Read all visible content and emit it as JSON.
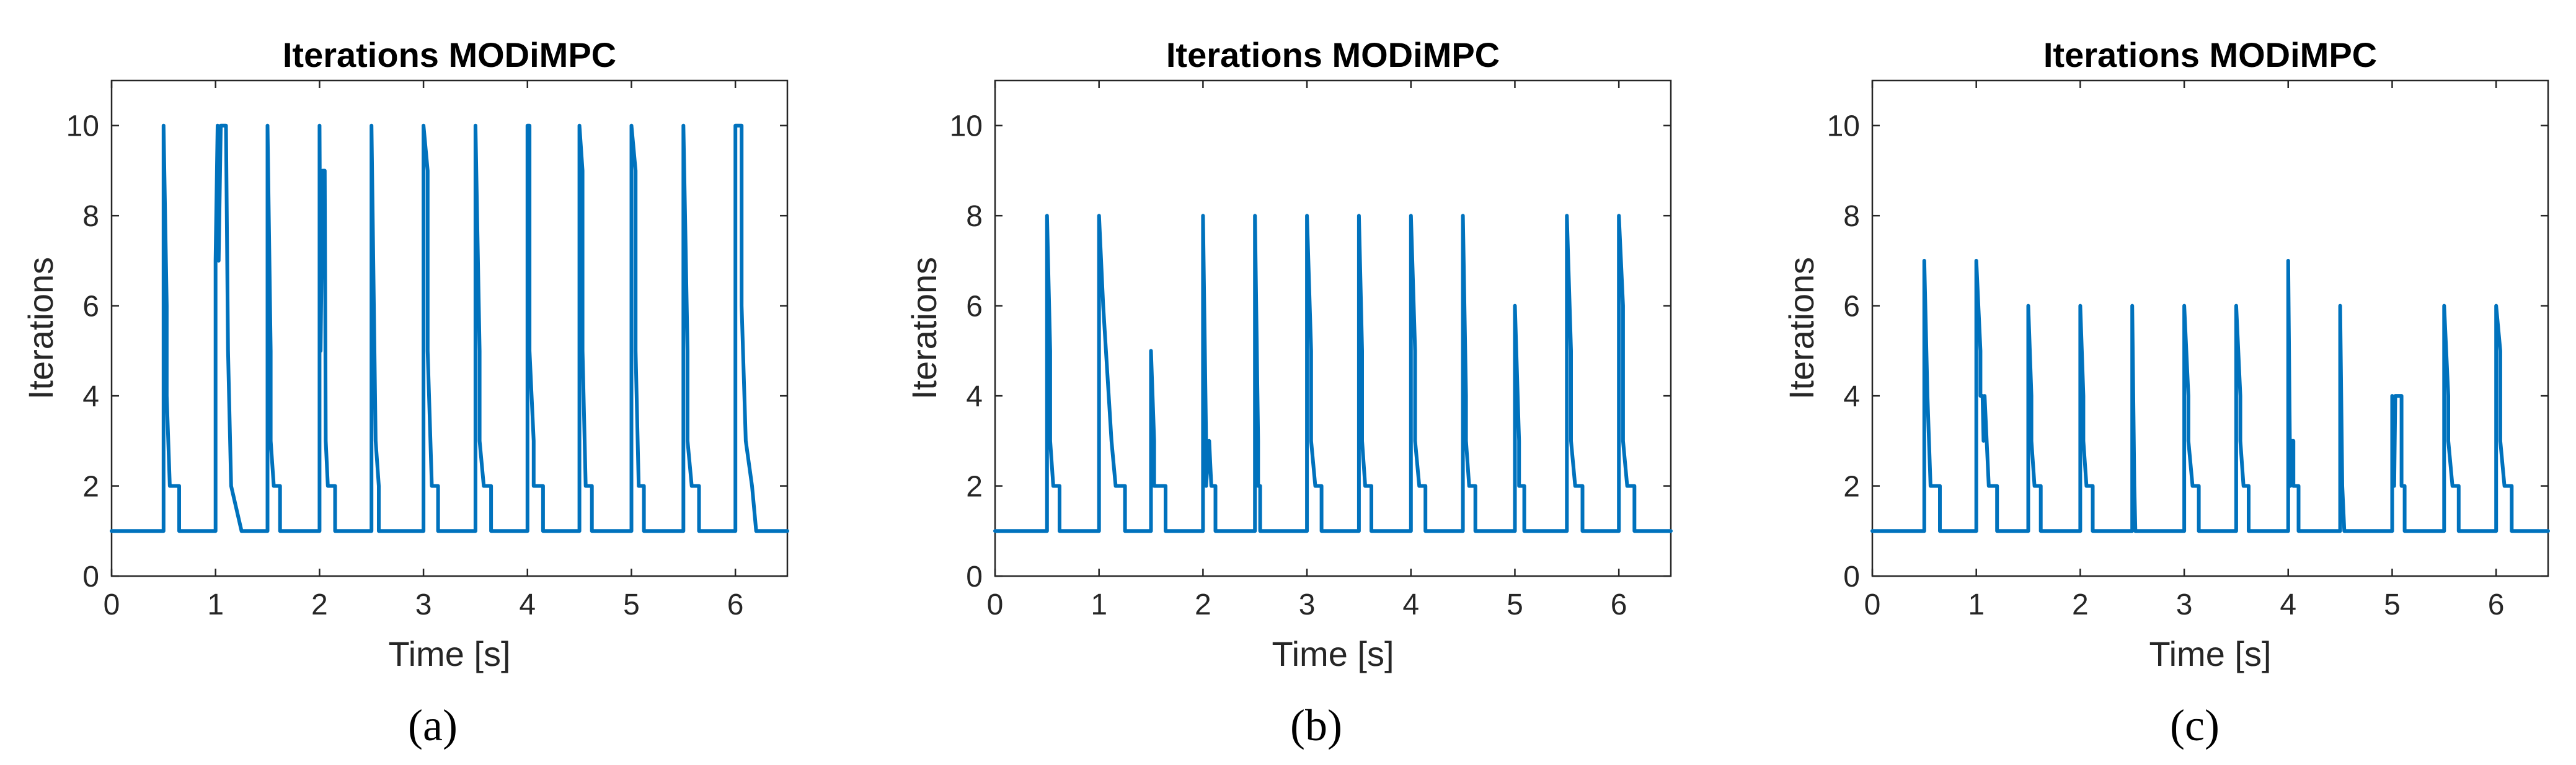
{
  "figure": {
    "captions": [
      "(a)",
      "(b)",
      "(c)"
    ]
  },
  "chart_data": [
    {
      "type": "line",
      "title": "Iterations MODiMPC",
      "xlabel": "Time [s]",
      "ylabel": "Iterations",
      "xlim": [
        0,
        6.5
      ],
      "ylim": [
        0,
        11
      ],
      "xticks": [
        0,
        1,
        2,
        3,
        4,
        5,
        6
      ],
      "yticks": [
        0,
        2,
        4,
        6,
        8,
        10
      ],
      "caption": "(a)",
      "color": "#0072BD",
      "series": [
        {
          "name": "Iterations",
          "x": [
            0,
            0.5,
            0.5,
            0.53,
            0.53,
            0.56,
            0.56,
            0.65,
            0.65,
            1.0,
            1.0,
            1.02,
            1.03,
            1.05,
            1.06,
            1.08,
            1.1,
            1.12,
            1.12,
            1.15,
            1.15,
            1.25,
            1.25,
            1.5,
            1.5,
            1.53,
            1.53,
            1.56,
            1.56,
            1.62,
            1.62,
            2.0,
            2.0,
            2.01,
            2.03,
            2.05,
            2.06,
            2.08,
            2.08,
            2.15,
            2.15,
            2.5,
            2.5,
            2.54,
            2.54,
            2.57,
            2.57,
            3.0,
            3.0,
            3.04,
            3.04,
            3.08,
            3.08,
            3.14,
            3.14,
            3.5,
            3.5,
            3.54,
            3.54,
            3.58,
            3.58,
            3.65,
            3.65,
            4.0,
            4.0,
            4.02,
            4.02,
            4.06,
            4.06,
            4.1,
            4.1,
            4.15,
            4.15,
            4.5,
            4.5,
            4.53,
            4.53,
            4.56,
            4.56,
            4.62,
            4.62,
            5.0,
            5.0,
            5.04,
            5.04,
            5.07,
            5.07,
            5.12,
            5.12,
            5.5,
            5.5,
            5.54,
            5.54,
            5.58,
            5.58,
            5.65,
            5.65,
            6.0,
            6.0,
            6.06,
            6.06,
            6.1,
            6.1,
            6.16,
            6.16,
            6.2,
            6.2,
            6.5
          ],
          "y": [
            1,
            1,
            10,
            6,
            4,
            2,
            2,
            2,
            1,
            1,
            7,
            10,
            7,
            10,
            10,
            10,
            10,
            5,
            5,
            2,
            2,
            1,
            1,
            1,
            10,
            5,
            3,
            2,
            2,
            2,
            1,
            1,
            10,
            5,
            9,
            9,
            3,
            2,
            2,
            2,
            1,
            1,
            10,
            3,
            3,
            2,
            1,
            1,
            10,
            9,
            5,
            2,
            2,
            2,
            1,
            1,
            10,
            5,
            3,
            2,
            2,
            2,
            1,
            1,
            10,
            10,
            5,
            3,
            2,
            2,
            2,
            2,
            1,
            1,
            10,
            9,
            5,
            2,
            2,
            2,
            1,
            1,
            10,
            9,
            5,
            2,
            2,
            2,
            1,
            1,
            10,
            5,
            3,
            2,
            2,
            2,
            1,
            1,
            10,
            10,
            6,
            3,
            3,
            2,
            2,
            1,
            1,
            1
          ]
        }
      ]
    },
    {
      "type": "line",
      "title": "Iterations MODiMPC",
      "xlabel": "Time [s]",
      "ylabel": "Iterations",
      "xlim": [
        0,
        6.5
      ],
      "ylim": [
        0,
        11
      ],
      "xticks": [
        0,
        1,
        2,
        3,
        4,
        5,
        6
      ],
      "yticks": [
        0,
        2,
        4,
        6,
        8,
        10
      ],
      "caption": "(b)",
      "color": "#0072BD",
      "series": [
        {
          "name": "Iterations",
          "x": [
            0,
            0.5,
            0.5,
            0.53,
            0.53,
            0.56,
            0.56,
            0.62,
            0.62,
            1.0,
            1.0,
            1.04,
            1.04,
            1.12,
            1.12,
            1.16,
            1.16,
            1.25,
            1.25,
            1.5,
            1.5,
            1.53,
            1.53,
            1.56,
            1.56,
            1.64,
            1.64,
            2.0,
            2.0,
            2.03,
            2.03,
            2.06,
            2.06,
            2.08,
            2.08,
            2.12,
            2.12,
            2.5,
            2.5,
            2.53,
            2.53,
            2.55,
            2.55,
            3.0,
            3.0,
            3.04,
            3.04,
            3.08,
            3.08,
            3.14,
            3.14,
            3.5,
            3.5,
            3.53,
            3.53,
            3.56,
            3.56,
            3.62,
            3.62,
            4.0,
            4.0,
            4.04,
            4.04,
            4.08,
            4.08,
            4.14,
            4.14,
            4.5,
            4.5,
            4.53,
            4.53,
            4.56,
            4.56,
            4.62,
            4.62,
            5.0,
            5.0,
            5.04,
            5.04,
            5.09,
            5.09,
            5.5,
            5.5,
            5.54,
            5.54,
            5.58,
            5.58,
            5.65,
            5.65,
            6.0,
            6.0,
            6.04,
            6.04,
            6.08,
            6.08,
            6.15,
            6.15,
            6.5
          ],
          "y": [
            1,
            1,
            8,
            5,
            3,
            2,
            2,
            2,
            1,
            1,
            8,
            6,
            6,
            3,
            3,
            2,
            2,
            2,
            1,
            1,
            5,
            3,
            2,
            2,
            2,
            2,
            1,
            1,
            8,
            3,
            2,
            3,
            3,
            2,
            2,
            2,
            1,
            1,
            8,
            3,
            2,
            2,
            1,
            1,
            8,
            5,
            3,
            2,
            2,
            2,
            1,
            1,
            8,
            5,
            3,
            2,
            2,
            2,
            1,
            1,
            8,
            5,
            3,
            2,
            2,
            2,
            1,
            1,
            8,
            4,
            3,
            2,
            2,
            2,
            1,
            1,
            6,
            3,
            2,
            2,
            1,
            1,
            8,
            5,
            3,
            2,
            2,
            2,
            1,
            1,
            8,
            6,
            3,
            2,
            2,
            2,
            1,
            1
          ]
        }
      ]
    },
    {
      "type": "line",
      "title": "Iterations MODiMPC",
      "xlabel": "Time [s]",
      "ylabel": "Iterations",
      "xlim": [
        0,
        6.5
      ],
      "ylim": [
        0,
        11
      ],
      "xticks": [
        0,
        1,
        2,
        3,
        4,
        5,
        6
      ],
      "yticks": [
        0,
        2,
        4,
        6,
        8,
        10
      ],
      "caption": "(c)",
      "color": "#0072BD",
      "series": [
        {
          "name": "Iterations",
          "x": [
            0,
            0.5,
            0.5,
            0.53,
            0.53,
            0.56,
            0.56,
            0.65,
            0.65,
            1.0,
            1.0,
            1.04,
            1.04,
            1.06,
            1.07,
            1.08,
            1.08,
            1.12,
            1.12,
            1.2,
            1.2,
            1.5,
            1.5,
            1.53,
            1.53,
            1.56,
            1.56,
            1.62,
            1.62,
            2.0,
            2.0,
            2.03,
            2.03,
            2.06,
            2.06,
            2.12,
            2.12,
            2.5,
            2.5,
            2.52,
            2.52,
            2.53,
            2.53,
            3.0,
            3.0,
            3.04,
            3.04,
            3.08,
            3.08,
            3.14,
            3.14,
            3.5,
            3.5,
            3.54,
            3.54,
            3.57,
            3.57,
            3.62,
            3.62,
            4.0,
            4.0,
            4.02,
            4.03,
            4.05,
            4.05,
            4.1,
            4.1,
            4.5,
            4.5,
            4.52,
            4.52,
            4.54,
            4.54,
            5.0,
            5.0,
            5.02,
            5.03,
            5.05,
            5.07,
            5.09,
            5.09,
            5.12,
            5.12,
            5.5,
            5.5,
            5.54,
            5.54,
            5.58,
            5.58,
            5.64,
            5.64,
            6.0,
            6.0,
            6.04,
            6.04,
            6.08,
            6.08,
            6.15,
            6.15,
            6.5
          ],
          "y": [
            1,
            1,
            7,
            4,
            4,
            2,
            2,
            2,
            1,
            1,
            7,
            5,
            4,
            4,
            3,
            4,
            4,
            2,
            2,
            2,
            1,
            1,
            6,
            4,
            3,
            2,
            2,
            2,
            1,
            1,
            6,
            4,
            3,
            2,
            2,
            2,
            1,
            1,
            6,
            2,
            2,
            1,
            1,
            1,
            6,
            4,
            3,
            2,
            2,
            2,
            1,
            1,
            6,
            4,
            3,
            2,
            2,
            2,
            1,
            1,
            7,
            2,
            3,
            3,
            2,
            2,
            1,
            1,
            6,
            2,
            2,
            1,
            1,
            1,
            4,
            2,
            4,
            4,
            4,
            4,
            2,
            2,
            1,
            1,
            6,
            4,
            3,
            2,
            2,
            2,
            1,
            1,
            6,
            5,
            3,
            2,
            2,
            2,
            1,
            1
          ]
        }
      ]
    }
  ]
}
